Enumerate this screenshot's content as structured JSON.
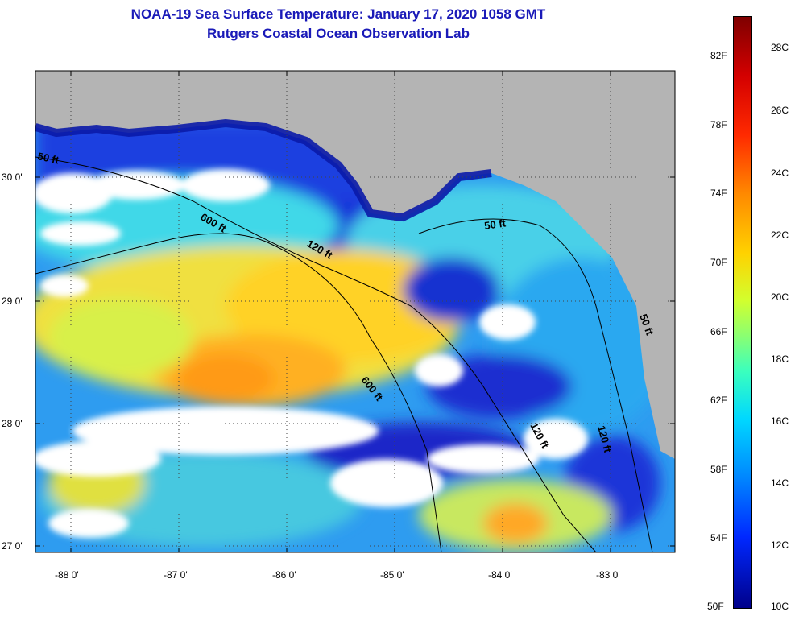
{
  "title": {
    "line1": "NOAA-19 Sea Surface Temperature:  January 17, 2020 1058 GMT",
    "line2": "Rutgers Coastal Ocean Observation Lab"
  },
  "axes": {
    "lat_ticks": [
      "30 0'",
      "29 0'",
      "28 0'",
      "27 0'"
    ],
    "lon_ticks": [
      "-88 0'",
      "-87 0'",
      "-86 0'",
      "-85 0'",
      "-84 0'",
      "-83 0'"
    ]
  },
  "contour_labels": [
    "50 ft",
    "600 ft",
    "120 ft",
    "50 ft",
    "600 ft",
    "120 ft",
    "120 ft",
    "50 ft"
  ],
  "colorbar": {
    "fahrenheit": [
      "82F",
      "78F",
      "74F",
      "70F",
      "66F",
      "62F",
      "58F",
      "54F",
      "50F"
    ],
    "celsius": [
      "28C",
      "26C",
      "24C",
      "22C",
      "20C",
      "18C",
      "16C",
      "14C",
      "12C",
      "10C"
    ]
  },
  "colors": {
    "land": "#b4b4b4",
    "cloud": "#ffffff",
    "title": "#1a1ab8"
  }
}
